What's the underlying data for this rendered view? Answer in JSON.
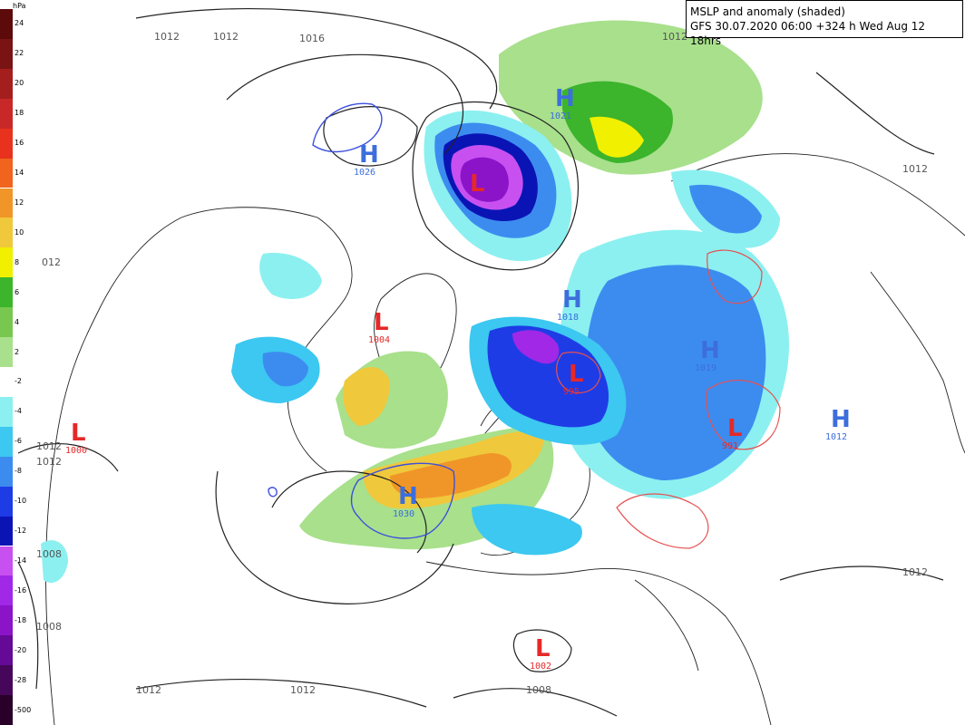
{
  "title": {
    "line1": "MSLP and anomaly (shaded)",
    "line2": "GFS 30.07.2020 06:00 +324 h Wed Aug 12 18hrs"
  },
  "legend": {
    "unit": "hPa",
    "labels": [
      "24",
      "22",
      "20",
      "18",
      "16",
      "14",
      "12",
      "10",
      "8",
      "6",
      "4",
      "2",
      "-2",
      "-4",
      "-6",
      "-8",
      "-10",
      "-12",
      "-14",
      "-16",
      "-18",
      "-20",
      "-28",
      "-500"
    ],
    "colors": [
      "#5c0a0a",
      "#7a1414",
      "#a51e1e",
      "#c82828",
      "#e8321e",
      "#f0641e",
      "#f09628",
      "#f0c83c",
      "#f0f000",
      "#3cb42c",
      "#78c850",
      "#a8e08c",
      "#ffffff",
      "#8cf0f0",
      "#3cc8f0",
      "#3c8cf0",
      "#1e3ce6",
      "#0a14b4",
      "#c850f0",
      "#a028e6",
      "#8c14c8",
      "#640a96",
      "#46065a",
      "#280028"
    ]
  },
  "isobar_labels": [
    {
      "text": "1012"
    },
    {
      "text": "1012"
    },
    {
      "text": "1016"
    },
    {
      "text": "1012"
    },
    {
      "text": "012"
    },
    {
      "text": "1012"
    },
    {
      "text": "1012"
    },
    {
      "text": "1008"
    },
    {
      "text": "1008"
    },
    {
      "text": "1012"
    },
    {
      "text": "1012"
    },
    {
      "text": "1008"
    },
    {
      "text": "1012"
    },
    {
      "text": "1012"
    }
  ],
  "pressure_centers": [
    {
      "type": "H",
      "value": "1026",
      "color": "#3c6edc"
    },
    {
      "type": "H",
      "value": "1021",
      "color": "#3c6edc"
    },
    {
      "type": "L",
      "value": "",
      "color": "#e62828"
    },
    {
      "type": "H",
      "value": "1018",
      "color": "#3c6edc"
    },
    {
      "type": "L",
      "value": "1004",
      "color": "#e62828"
    },
    {
      "type": "L",
      "value": "995",
      "color": "#e62828"
    },
    {
      "type": "H",
      "value": "1019",
      "color": "#3c6edc"
    },
    {
      "type": "L",
      "value": "991",
      "color": "#e62828"
    },
    {
      "type": "H",
      "value": "1012",
      "color": "#3c6edc"
    },
    {
      "type": "L",
      "value": "1000",
      "color": "#e62828"
    },
    {
      "type": "H",
      "value": "1030",
      "color": "#3c6edc"
    },
    {
      "type": "L",
      "value": "1002",
      "color": "#e62828"
    }
  ]
}
